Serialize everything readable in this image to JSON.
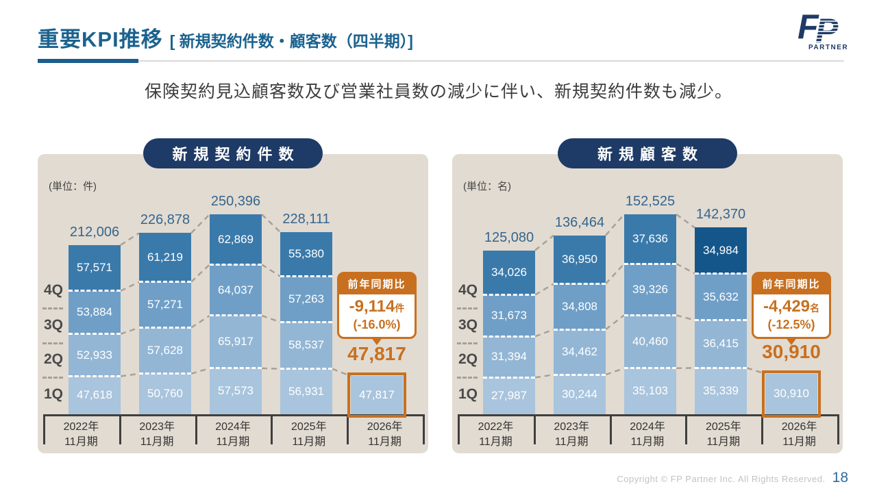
{
  "header": {
    "title_main": "重要KPI推移",
    "title_sub": "[ 新規契約件数・顧客数（四半期）]",
    "logo": {
      "f": "F",
      "p": "P",
      "partner": "PARTNER"
    }
  },
  "lead_text": "保険契約見込顧客数及び営業社員数の減少に伴い、新規契約件数も減少。",
  "footer": {
    "copyright": "Copyright © FP Partner Inc. All Rights Reserved.",
    "page_number": "18"
  },
  "colors": {
    "title_blue": "#1b628f",
    "pill_navy": "#1e3a66",
    "panel_bg": "#e2dbd1",
    "quarter_colors": [
      "#a9c4dd",
      "#93b6d5",
      "#6f9fc7",
      "#3a7aab"
    ],
    "highlight_dark_blue": "#15568a",
    "accent_orange": "#c8701f",
    "total_label_blue": "#34658f",
    "connector_gray": "#a8a198"
  },
  "chart_data": [
    {
      "type": "bar",
      "stacked": true,
      "title": "新規契約件数",
      "unit_label": "(単位：件)",
      "legend_position": "none",
      "grid": false,
      "categories": [
        "2022年\n11月期",
        "2023年\n11月期",
        "2024年\n11月期",
        "2025年\n11月期",
        "2026年\n11月期"
      ],
      "quarter_labels": [
        "4Q",
        "3Q",
        "2Q",
        "1Q"
      ],
      "series": [
        {
          "name": "1Q",
          "values": [
            47618,
            50760,
            57573,
            56931,
            47817
          ]
        },
        {
          "name": "2Q",
          "values": [
            52933,
            57628,
            65917,
            58537,
            null
          ]
        },
        {
          "name": "3Q",
          "values": [
            53884,
            57271,
            64037,
            57263,
            null
          ]
        },
        {
          "name": "4Q",
          "values": [
            57571,
            61219,
            62869,
            55380,
            null
          ]
        }
      ],
      "totals": [
        212006,
        226878,
        250396,
        228111,
        47817
      ],
      "highlight_category_index": 4,
      "highlight_segment": null,
      "callout": {
        "header": "前年同期比",
        "value": "-9,114",
        "unit": "件",
        "percent": "(-16.0%)"
      },
      "highlight_total_label": "47,817"
    },
    {
      "type": "bar",
      "stacked": true,
      "title": "新規顧客数",
      "unit_label": "(単位：名)",
      "legend_position": "none",
      "grid": false,
      "categories": [
        "2022年\n11月期",
        "2023年\n11月期",
        "2024年\n11月期",
        "2025年\n11月期",
        "2026年\n11月期"
      ],
      "quarter_labels": [
        "4Q",
        "3Q",
        "2Q",
        "1Q"
      ],
      "series": [
        {
          "name": "1Q",
          "values": [
            27987,
            30244,
            35103,
            35339,
            30910
          ]
        },
        {
          "name": "2Q",
          "values": [
            31394,
            34462,
            40460,
            36415,
            null
          ]
        },
        {
          "name": "3Q",
          "values": [
            31673,
            34808,
            39326,
            35632,
            null
          ]
        },
        {
          "name": "4Q",
          "values": [
            34026,
            36950,
            37636,
            34984,
            null
          ]
        }
      ],
      "totals": [
        125080,
        136464,
        152525,
        142370,
        30910
      ],
      "highlight_category_index": 4,
      "highlight_segment": {
        "year_index": 3,
        "quarter_index": 3
      },
      "callout": {
        "header": "前年同期比",
        "value": "-4,429",
        "unit": "名",
        "percent": "(-12.5%)"
      },
      "highlight_total_label": "30,910"
    }
  ]
}
